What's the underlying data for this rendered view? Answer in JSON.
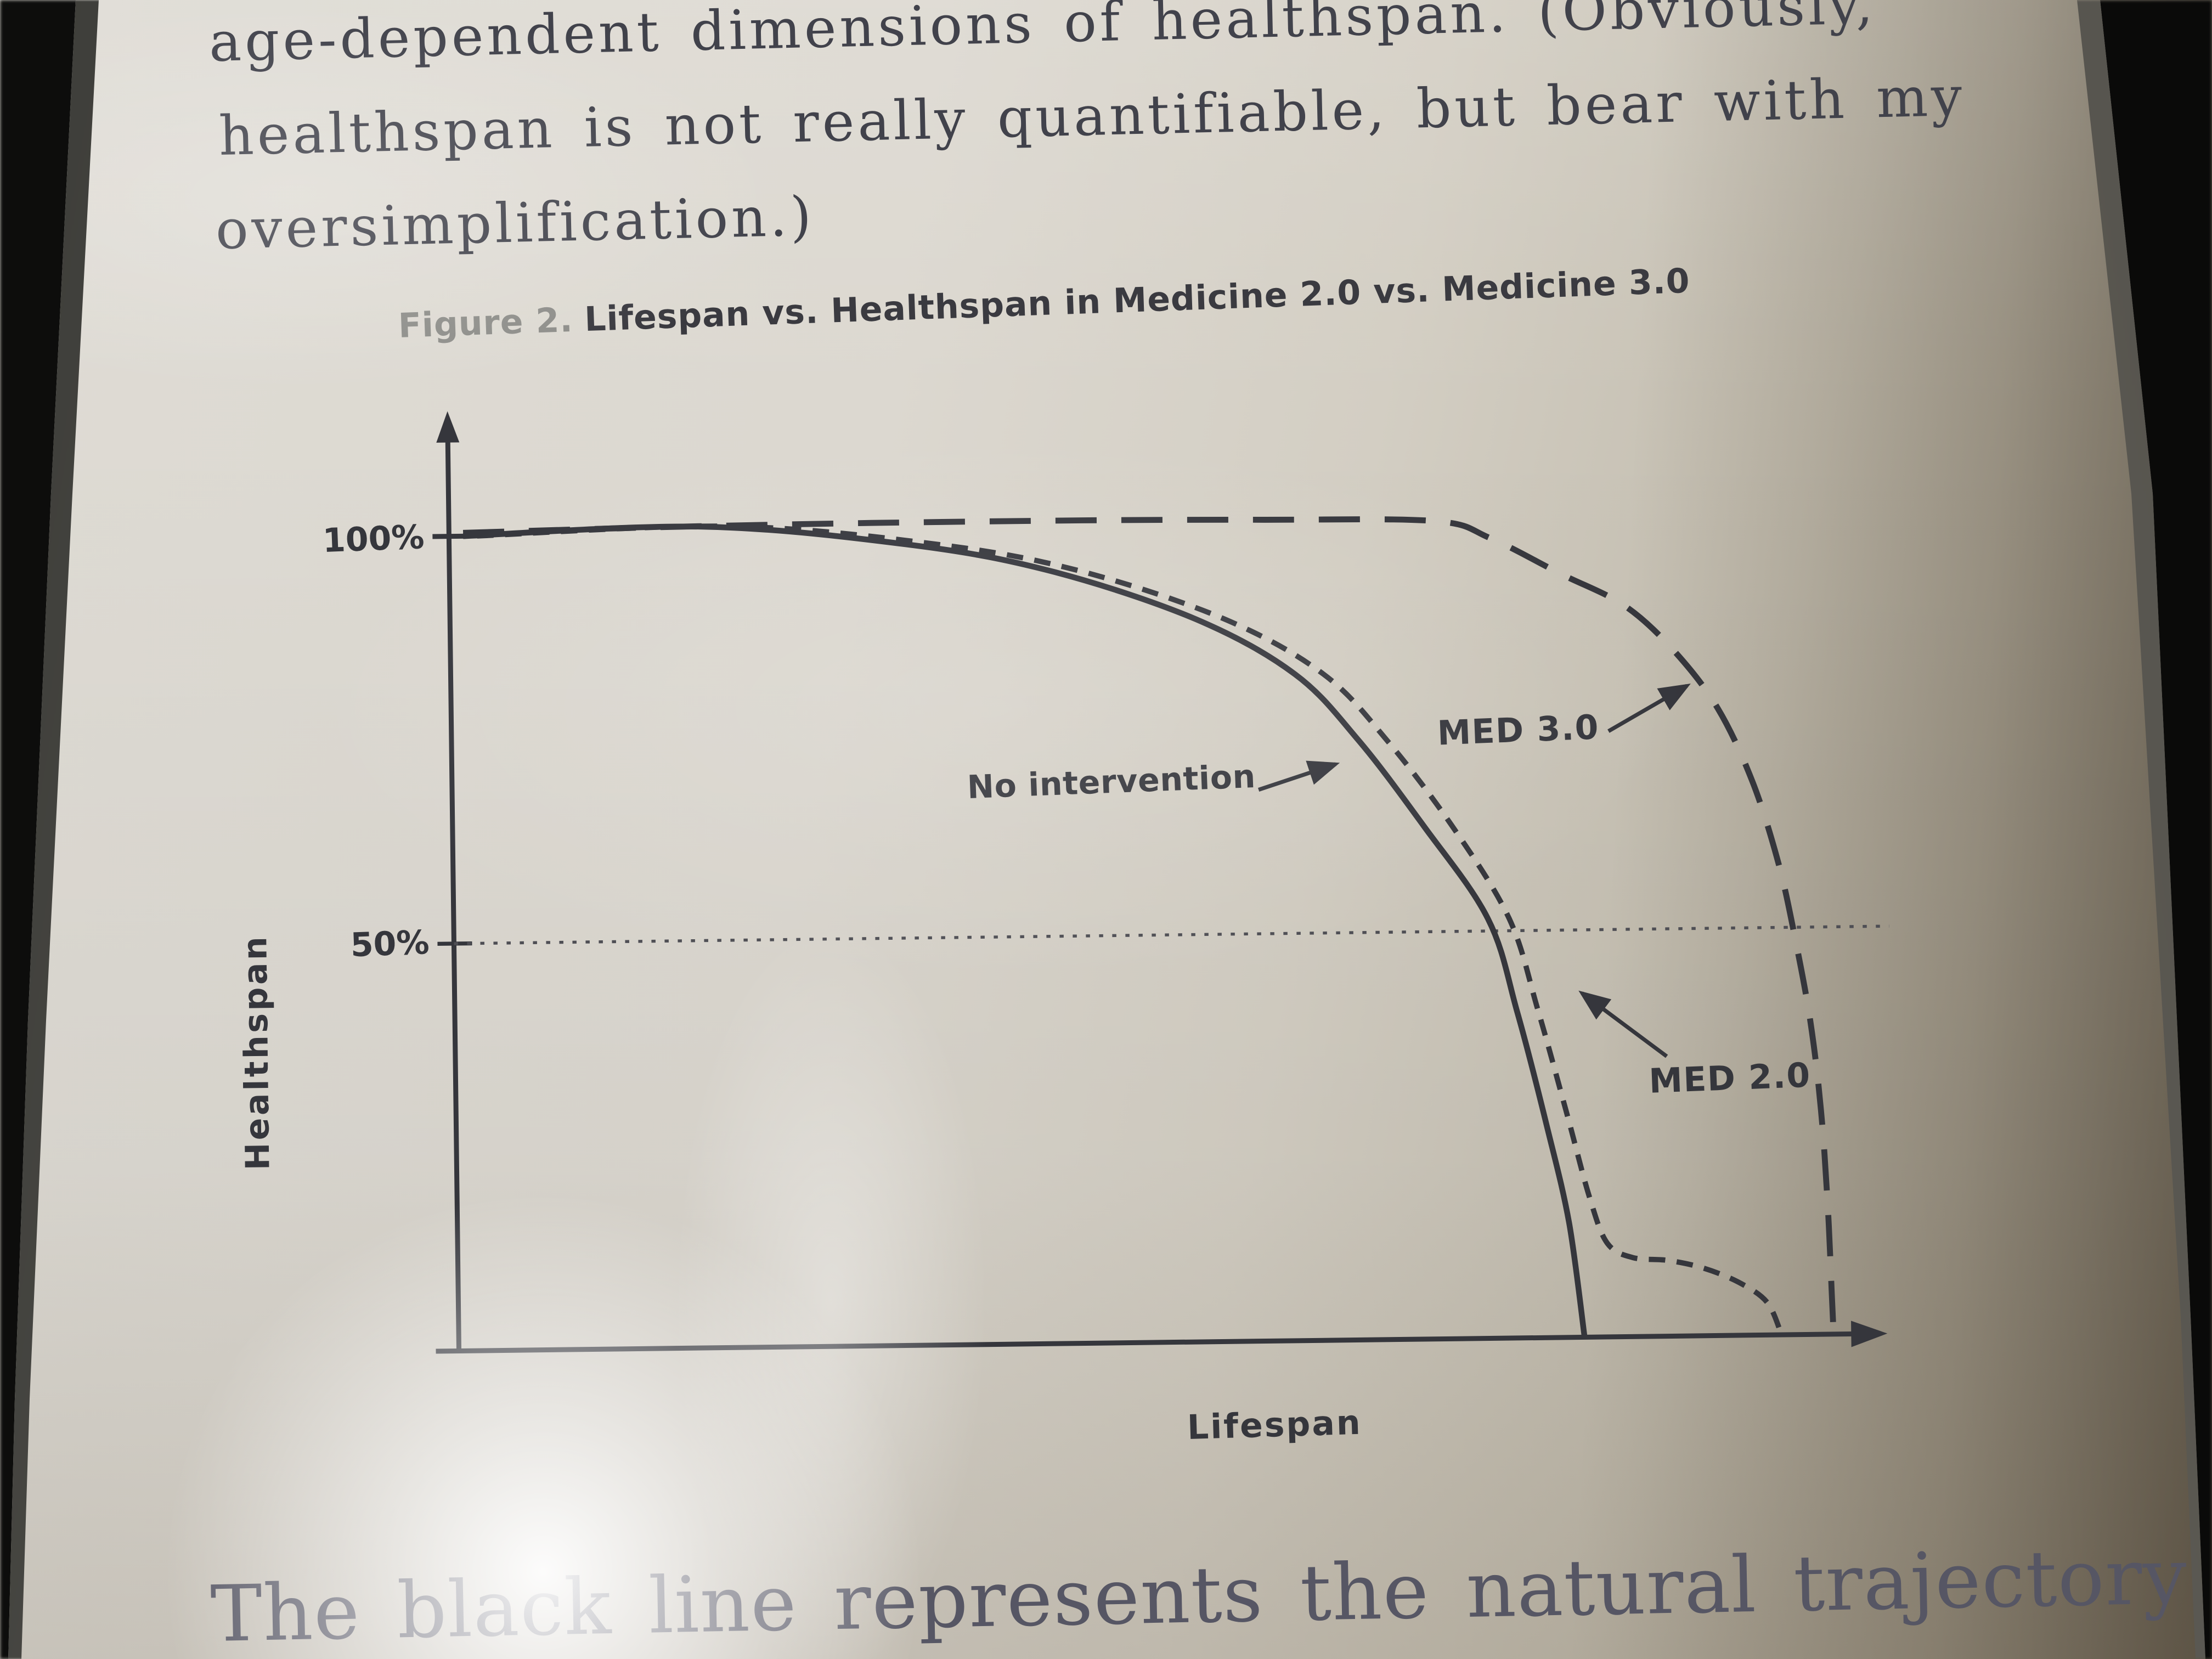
{
  "page": {
    "paragraph_top": {
      "line1": "age-dependent dimensions of healthspan. (Obviously,",
      "line2": "healthspan is not really quantifiable, but bear with my",
      "line3": "oversimplification.)"
    },
    "figure_caption": {
      "label": "Figure 2.",
      "title": "Lifespan vs. Healthspan in Medicine 2.0 vs. Medicine 3.0"
    },
    "paragraph_bottom": "The black line represents the natural trajectory of"
  },
  "chart_data": {
    "type": "line",
    "title": "Figure 2. Lifespan vs. Healthspan in Medicine 2.0 vs. Medicine 3.0",
    "xlabel": "Lifespan",
    "ylabel": "Healthspan",
    "x_unit": "relative lifespan (no numeric ticks shown)",
    "xlim": [
      0,
      100
    ],
    "ylim": [
      0,
      112
    ],
    "grid": "single dotted horizontal line at 50%",
    "legend_position": "inline annotations with arrows",
    "yticks": [
      {
        "value": 100,
        "label": "100%"
      },
      {
        "value": 50,
        "label": "50%"
      }
    ],
    "gridlines": [
      {
        "y": 50,
        "style": "dotted",
        "x_start": 0,
        "x_end": 102
      }
    ],
    "series": [
      {
        "name": "No intervention",
        "style": "solid",
        "points": [
          [
            1,
            100
          ],
          [
            18,
            100.8
          ],
          [
            33,
            98.2
          ],
          [
            43,
            94.7
          ],
          [
            53,
            88.7
          ],
          [
            60,
            81.8
          ],
          [
            64.5,
            73.5
          ],
          [
            69,
            63
          ],
          [
            73.5,
            51.5
          ],
          [
            75.5,
            40
          ],
          [
            77.5,
            26
          ],
          [
            79,
            14
          ],
          [
            80,
            0
          ]
        ]
      },
      {
        "name": "MED 2.0",
        "style": "dashed-short",
        "points": [
          [
            2,
            100
          ],
          [
            20,
            100.8
          ],
          [
            35,
            98.2
          ],
          [
            45,
            94.7
          ],
          [
            55,
            88.7
          ],
          [
            62,
            81.8
          ],
          [
            66.5,
            73.5
          ],
          [
            71,
            63
          ],
          [
            75,
            51.5
          ],
          [
            77,
            40
          ],
          [
            79,
            27
          ],
          [
            80.5,
            17
          ],
          [
            81.7,
            11.5
          ],
          [
            83.5,
            9.7
          ],
          [
            86,
            9.3
          ],
          [
            88.5,
            8.3
          ],
          [
            91,
            6.5
          ],
          [
            93,
            4
          ],
          [
            94,
            0
          ]
        ]
      },
      {
        "name": "MED 3.0",
        "style": "dashed-long",
        "points": [
          [
            1,
            100.4
          ],
          [
            15,
            100.8
          ],
          [
            30,
            101
          ],
          [
            45,
            101
          ],
          [
            58,
            100.8
          ],
          [
            70,
            100.4
          ],
          [
            74,
            98.2
          ],
          [
            79,
            93.7
          ],
          [
            83.5,
            89.7
          ],
          [
            87,
            84
          ],
          [
            90,
            77
          ],
          [
            92.4,
            68
          ],
          [
            94.2,
            57.8
          ],
          [
            95.3,
            48.7
          ],
          [
            96.3,
            38.6
          ],
          [
            97,
            27.5
          ],
          [
            97.4,
            15.4
          ],
          [
            97.6,
            5
          ],
          [
            97.7,
            0
          ]
        ]
      }
    ],
    "annotations": [
      {
        "label": "No intervention",
        "points_to_series": "No intervention",
        "arrow_direction": "up-right"
      },
      {
        "label": "MED 3.0",
        "points_to_series": "MED 3.0",
        "arrow_direction": "up-right"
      },
      {
        "label": "MED 2.0",
        "points_to_series": "MED 2.0",
        "arrow_direction": "up-left"
      }
    ]
  },
  "colors": {
    "paper": "#d9d5cc",
    "text_ink": "#41424b",
    "chart_ink": "#35363c",
    "caption_label_gray": "#8e8e8a",
    "bezel_black": "#0b0b0a"
  }
}
